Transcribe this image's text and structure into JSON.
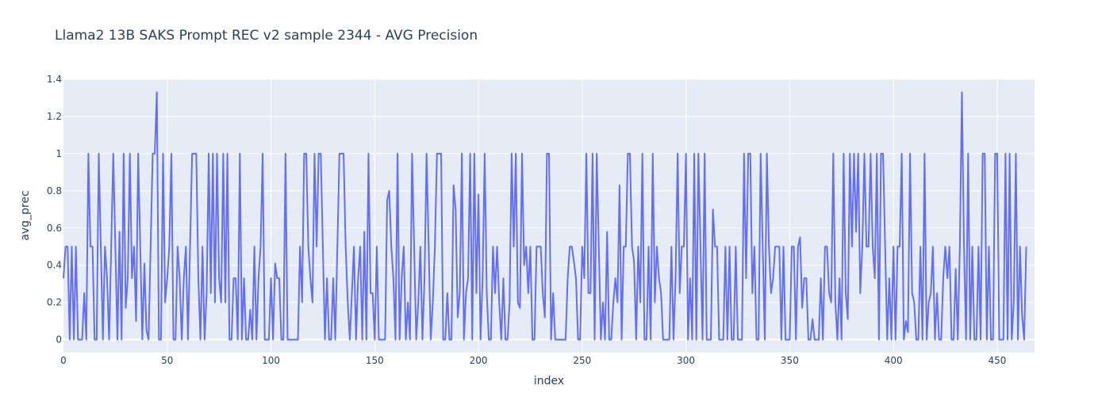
{
  "chart_data": {
    "type": "line",
    "title": "Llama2 13B SAKS Prompt REC v2 sample 2344 - AVG Precision",
    "xlabel": "index",
    "ylabel": "avg_prec",
    "xlim": [
      0,
      468
    ],
    "ylim": [
      -0.07,
      1.4
    ],
    "x_ticks": [
      0,
      50,
      100,
      150,
      200,
      250,
      300,
      350,
      400,
      450
    ],
    "y_ticks": [
      0,
      0.2,
      0.4,
      0.6,
      0.8,
      1,
      1.2,
      1.4
    ],
    "y_tick_labels": [
      "0",
      "0.2",
      "0.4",
      "0.6",
      "0.8",
      "1",
      "1.2",
      "1.4"
    ],
    "grid": true,
    "colors": {
      "line": "#636efa",
      "plot_bg": "#e5ecf6",
      "grid": "#ffffff",
      "text": "#2a3f5f"
    },
    "series": [
      {
        "values": [
          0.33,
          0.5,
          0.5,
          0,
          0.5,
          0,
          0.5,
          0,
          0,
          0,
          0.25,
          0,
          1,
          0.5,
          0.5,
          0,
          0,
          1,
          0.5,
          0,
          0.5,
          0.33,
          0,
          0.5,
          1,
          0.5,
          0,
          0.58,
          0,
          1,
          0.17,
          0.33,
          1,
          0.33,
          0.5,
          0.1,
          1,
          0.5,
          0,
          0.41,
          0.05,
          0,
          0.5,
          1,
          1,
          1.33,
          0,
          0,
          1,
          0.2,
          0.33,
          0.5,
          1,
          0,
          0,
          0.5,
          0.33,
          0,
          0.33,
          0.5,
          0,
          0.5,
          1,
          1,
          1,
          0.33,
          0,
          0.5,
          0,
          0.25,
          1,
          0.25,
          1,
          0.2,
          1,
          0.33,
          0.2,
          1,
          0.2,
          1,
          0,
          0,
          0.33,
          0.33,
          0,
          1,
          0,
          0.33,
          0,
          0,
          0.16,
          0,
          0.5,
          0,
          0.33,
          0.5,
          1,
          0,
          0,
          0,
          0.33,
          0,
          0.41,
          0.33,
          0.33,
          0,
          0,
          1,
          0,
          0,
          0,
          0,
          0,
          0,
          0.5,
          0.2,
          1,
          1,
          0.5,
          0.33,
          0.2,
          1,
          0.5,
          1,
          1,
          0.5,
          0,
          0.33,
          0,
          0,
          0.33,
          0,
          0.5,
          1,
          1,
          1,
          0.5,
          0.2,
          0,
          0.25,
          0.5,
          0,
          0.33,
          0.5,
          0,
          0.58,
          0,
          1,
          0.25,
          0.25,
          0,
          0.5,
          0,
          0,
          0,
          0,
          0.75,
          0.8,
          0.5,
          0.33,
          0,
          1,
          0,
          0.33,
          0.5,
          0,
          0.2,
          0,
          1,
          0.5,
          0,
          0.2,
          0.5,
          0,
          0.33,
          1,
          0.5,
          0,
          0.2,
          0.5,
          1,
          1,
          1,
          0,
          0,
          0.25,
          0,
          0,
          0.83,
          0.7,
          0.12,
          0.25,
          1,
          0,
          0.25,
          0.33,
          1,
          0,
          1,
          0.25,
          0.78,
          0,
          0.33,
          1,
          0.25,
          0,
          0,
          0.5,
          0.25,
          0.5,
          0.2,
          0,
          0.33,
          0,
          0,
          0.2,
          1,
          0.5,
          1,
          0.2,
          0.17,
          1,
          0.4,
          0.5,
          0.25,
          0.5,
          0,
          0,
          0.5,
          0.5,
          0.5,
          0.25,
          0.12,
          1,
          1,
          0,
          0.25,
          0,
          0,
          0,
          0,
          0,
          0,
          0.33,
          0.5,
          0.5,
          0.42,
          0.33,
          0,
          0,
          0.5,
          0.33,
          1,
          0.25,
          0.25,
          1,
          0,
          1,
          0.5,
          0,
          0.2,
          0,
          0.58,
          0,
          0,
          0.2,
          0.33,
          0.2,
          0.83,
          0,
          0.5,
          0.5,
          1,
          1,
          0.5,
          0.42,
          0,
          0.5,
          0.2,
          1,
          0,
          0,
          0.5,
          0,
          1,
          0.2,
          0.5,
          0.33,
          0.25,
          0,
          0,
          0,
          0,
          0.5,
          0,
          0.33,
          1,
          0.25,
          0.5,
          0.5,
          1,
          0,
          0.33,
          0,
          1,
          0,
          1,
          0.5,
          0,
          1,
          0,
          0,
          0,
          0.7,
          0.5,
          0.5,
          0,
          0,
          0,
          0.5,
          0,
          0.5,
          0,
          0,
          0.5,
          0,
          0,
          0,
          1,
          0.33,
          1,
          1,
          0.25,
          0.5,
          0,
          0,
          1,
          0.5,
          0,
          1,
          0.5,
          0.25,
          0.33,
          0.5,
          0.5,
          0.5,
          0,
          0.5,
          0,
          0,
          0,
          0.5,
          0.5,
          0,
          0.5,
          0.55,
          0.17,
          0.33,
          0.33,
          0,
          0,
          0.11,
          0,
          0,
          0,
          0.33,
          0,
          0.5,
          0.5,
          0.25,
          0.2,
          1,
          0.2,
          0,
          0.33,
          0,
          1,
          0.25,
          0.11,
          1,
          0.5,
          1,
          0.58,
          1,
          0.25,
          0.5,
          1,
          0.5,
          0.5,
          1,
          0.5,
          0.33,
          1,
          0,
          1,
          1,
          0.5,
          0,
          0.33,
          0,
          0.5,
          0,
          0.5,
          0.5,
          1,
          0,
          0.1,
          0.04,
          1,
          0.25,
          0.2,
          0,
          0,
          0.5,
          0,
          1,
          0,
          0.2,
          0.25,
          0.5,
          0,
          0.25,
          0,
          0,
          0.33,
          0.5,
          0.33,
          0.5,
          0,
          0,
          0.38,
          0,
          0.5,
          1.33,
          0.5,
          0,
          1,
          0,
          0.5,
          0,
          0,
          0.5,
          0,
          1,
          1,
          0,
          0.5,
          0,
          0,
          1,
          1,
          0,
          0,
          0,
          1,
          0,
          1,
          0,
          0.2,
          1,
          0,
          0.5,
          0.13,
          0,
          0.5
        ]
      }
    ]
  }
}
